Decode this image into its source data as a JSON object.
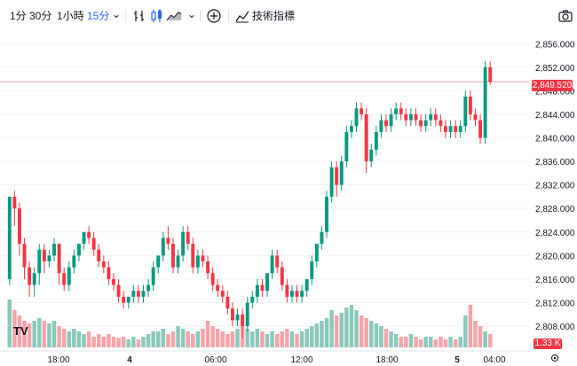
{
  "toolbar": {
    "intervals": [
      "1分",
      "30分",
      "1小時",
      "15分"
    ],
    "active_interval": "15分",
    "indicators_label": "技術指標"
  },
  "logo": {
    "text": "TV"
  },
  "colors": {
    "up": "#089981",
    "down": "#f23645",
    "up_vol": "#89c9bb",
    "down_vol": "#f7a3aa",
    "grid": "#f0f3fa"
  },
  "chart_data": {
    "type": "candlestick",
    "price_axis": {
      "ticks": [
        "2,856.000",
        "2,852.000",
        "2,848.000",
        "2,844.000",
        "2,840.000",
        "2,836.000",
        "2,832.000",
        "2,828.000",
        "2,824.000",
        "2,820.000",
        "2,816.000",
        "2,812.000",
        "2,808.000"
      ],
      "range": [
        2805.0,
        2858.0
      ]
    },
    "time_axis": {
      "ticks": [
        "18:00",
        "4",
        "06:00",
        "12:00",
        "18:00",
        "5",
        "04:00"
      ]
    },
    "last_price": "2,849.520",
    "volume_label": "1.33 K",
    "candles": [
      [
        2816,
        2830,
        2830,
        2815
      ],
      [
        2830,
        2828,
        2831,
        2825
      ],
      [
        2828,
        2822,
        2829,
        2820
      ],
      [
        2822,
        2818,
        2823,
        2816
      ],
      [
        2818,
        2815,
        2819,
        2813
      ],
      [
        2815,
        2817,
        2818,
        2813
      ],
      [
        2817,
        2821,
        2822,
        2815
      ],
      [
        2821,
        2819,
        2822,
        2817
      ],
      [
        2819,
        2820,
        2821,
        2818
      ],
      [
        2820,
        2822,
        2823,
        2819
      ],
      [
        2822,
        2817,
        2822,
        2815
      ],
      [
        2817,
        2815,
        2818,
        2814
      ],
      [
        2815,
        2818,
        2819,
        2814
      ],
      [
        2818,
        2820,
        2821,
        2817
      ],
      [
        2820,
        2822,
        2822,
        2819
      ],
      [
        2822,
        2824,
        2824,
        2821
      ],
      [
        2824,
        2823,
        2825,
        2822
      ],
      [
        2823,
        2821,
        2824,
        2820
      ],
      [
        2821,
        2819,
        2822,
        2818
      ],
      [
        2819,
        2818,
        2820,
        2817
      ],
      [
        2818,
        2816,
        2819,
        2815
      ],
      [
        2816,
        2815,
        2817,
        2814
      ],
      [
        2815,
        2813,
        2816,
        2812
      ],
      [
        2813,
        2812,
        2814,
        2811
      ],
      [
        2812,
        2813,
        2813,
        2811
      ],
      [
        2813,
        2814,
        2815,
        2812
      ],
      [
        2814,
        2813,
        2815,
        2812
      ],
      [
        2813,
        2814,
        2815,
        2812
      ],
      [
        2814,
        2815,
        2816,
        2813
      ],
      [
        2815,
        2818,
        2819,
        2814
      ],
      [
        2818,
        2820,
        2820,
        2817
      ],
      [
        2820,
        2823,
        2824,
        2819
      ],
      [
        2823,
        2822,
        2825,
        2821
      ],
      [
        2822,
        2818,
        2823,
        2817
      ],
      [
        2818,
        2820,
        2821,
        2817
      ],
      [
        2820,
        2824,
        2825,
        2819
      ],
      [
        2824,
        2822,
        2825,
        2821
      ],
      [
        2822,
        2818,
        2823,
        2817
      ],
      [
        2818,
        2820,
        2821,
        2817
      ],
      [
        2820,
        2819,
        2821,
        2818
      ],
      [
        2819,
        2817,
        2820,
        2816
      ],
      [
        2817,
        2815,
        2818,
        2814
      ],
      [
        2815,
        2814,
        2816,
        2813
      ],
      [
        2814,
        2813,
        2815,
        2812
      ],
      [
        2813,
        2811,
        2814,
        2810
      ],
      [
        2811,
        2809,
        2812,
        2808
      ],
      [
        2809,
        2810,
        2811,
        2808
      ],
      [
        2810,
        2808,
        2811,
        2806
      ],
      [
        2808,
        2812,
        2813,
        2807
      ],
      [
        2812,
        2813,
        2814,
        2811
      ],
      [
        2813,
        2815,
        2816,
        2812
      ],
      [
        2815,
        2814,
        2816,
        2813
      ],
      [
        2814,
        2817,
        2817,
        2813
      ],
      [
        2817,
        2820,
        2821,
        2816
      ],
      [
        2820,
        2818,
        2821,
        2817
      ],
      [
        2818,
        2815,
        2819,
        2814
      ],
      [
        2815,
        2813,
        2816,
        2812
      ],
      [
        2813,
        2814,
        2815,
        2812
      ],
      [
        2814,
        2813,
        2815,
        2812
      ],
      [
        2813,
        2814,
        2815,
        2812
      ],
      [
        2814,
        2816,
        2816,
        2813
      ],
      [
        2816,
        2819,
        2820,
        2815
      ],
      [
        2819,
        2822,
        2822,
        2818
      ],
      [
        2822,
        2824,
        2825,
        2821
      ],
      [
        2824,
        2830,
        2831,
        2823
      ],
      [
        2830,
        2835,
        2836,
        2829
      ],
      [
        2835,
        2832,
        2836,
        2830
      ],
      [
        2832,
        2836,
        2837,
        2831
      ],
      [
        2836,
        2841,
        2842,
        2835
      ],
      [
        2841,
        2842,
        2843,
        2840
      ],
      [
        2842,
        2845,
        2846,
        2841
      ],
      [
        2845,
        2844,
        2846,
        2843
      ],
      [
        2844,
        2836,
        2845,
        2834
      ],
      [
        2836,
        2838,
        2839,
        2835
      ],
      [
        2838,
        2841,
        2842,
        2837
      ],
      [
        2841,
        2843,
        2844,
        2840
      ],
      [
        2843,
        2842,
        2844,
        2841
      ],
      [
        2842,
        2844,
        2845,
        2841
      ],
      [
        2844,
        2845,
        2846,
        2843
      ],
      [
        2845,
        2844,
        2846,
        2843
      ],
      [
        2844,
        2843,
        2845,
        2842
      ],
      [
        2843,
        2844,
        2845,
        2842
      ],
      [
        2844,
        2843,
        2845,
        2842
      ],
      [
        2843,
        2842,
        2844,
        2841
      ],
      [
        2842,
        2843,
        2844,
        2841
      ],
      [
        2843,
        2844,
        2845,
        2842
      ],
      [
        2844,
        2843,
        2845,
        2842
      ],
      [
        2843,
        2842,
        2844,
        2841
      ],
      [
        2842,
        2841,
        2843,
        2840
      ],
      [
        2841,
        2842,
        2843,
        2840
      ],
      [
        2842,
        2841,
        2843,
        2840
      ],
      [
        2841,
        2842,
        2843,
        2840
      ],
      [
        2842,
        2847,
        2848,
        2841
      ],
      [
        2847,
        2844,
        2848,
        2843
      ],
      [
        2844,
        2843,
        2845,
        2842
      ],
      [
        2843,
        2840,
        2844,
        2839
      ],
      [
        2840,
        2852,
        2853,
        2839
      ],
      [
        2852,
        2849.52,
        2853,
        2849
      ]
    ],
    "volumes": [
      0.9,
      0.7,
      0.6,
      0.5,
      0.45,
      0.5,
      0.55,
      0.5,
      0.45,
      0.5,
      0.4,
      0.35,
      0.3,
      0.35,
      0.3,
      0.25,
      0.3,
      0.2,
      0.25,
      0.2,
      0.25,
      0.2,
      0.18,
      0.2,
      0.15,
      0.2,
      0.15,
      0.2,
      0.25,
      0.3,
      0.3,
      0.35,
      0.25,
      0.3,
      0.4,
      0.35,
      0.3,
      0.25,
      0.3,
      0.35,
      0.5,
      0.4,
      0.35,
      0.3,
      0.25,
      0.3,
      0.35,
      0.4,
      0.35,
      0.3,
      0.35,
      0.3,
      0.25,
      0.3,
      0.25,
      0.3,
      0.35,
      0.3,
      0.25,
      0.3,
      0.35,
      0.4,
      0.45,
      0.5,
      0.55,
      0.7,
      0.6,
      0.65,
      0.75,
      0.8,
      0.7,
      0.6,
      0.55,
      0.5,
      0.45,
      0.4,
      0.35,
      0.3,
      0.25,
      0.2,
      0.2,
      0.25,
      0.2,
      0.15,
      0.2,
      0.2,
      0.15,
      0.2,
      0.15,
      0.2,
      0.15,
      0.2,
      0.6,
      0.8,
      0.5,
      0.4,
      0.3,
      0.25
    ]
  }
}
